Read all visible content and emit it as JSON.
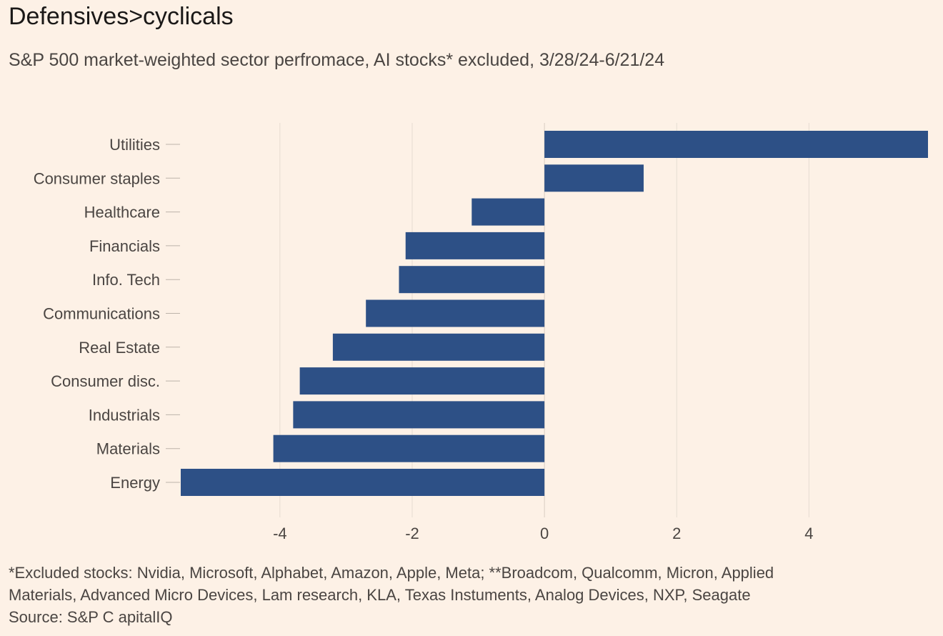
{
  "title": "Defensives>cyclicals",
  "subtitle": "S&P 500 market-weighted sector perfromace, AI stocks* excluded, 3/28/24-6/21/24",
  "footnote": {
    "line1": "*Excluded stocks: Nvidia, Microsoft, Alphabet, Amazon, Apple, Meta; **Broadcom, Qualcomm, Micron, Applied",
    "line2": "Materials, Advanced Micro Devices, Lam research, KLA, Texas Instuments, Analog Devices, NXP, Seagate",
    "source": "Source: S&P C apitalIQ"
  },
  "colors": {
    "bar": "#2d5086",
    "background": "#fdf1e6",
    "grid": "#e6dcd2",
    "tick": "#bdb3aa"
  },
  "chart_data": {
    "type": "bar",
    "orientation": "horizontal",
    "title": "Defensives>cyclicals",
    "subtitle": "S&P 500 market-weighted sector perfromace, AI stocks* excluded, 3/28/24-6/21/24",
    "xlabel": "",
    "ylabel": "",
    "categories": [
      "Utilities",
      "Consumer staples",
      "Healthcare",
      "Financials",
      "Info. Tech",
      "Communications",
      "Real Estate",
      "Consumer disc.",
      "Industrials",
      "Materials",
      "Energy"
    ],
    "values": [
      5.8,
      1.5,
      -1.1,
      -2.1,
      -2.2,
      -2.7,
      -3.2,
      -3.7,
      -3.8,
      -4.1,
      -5.5
    ],
    "xlim": [
      -5.5,
      5.8
    ],
    "xticks": [
      -4,
      -2,
      0,
      2,
      4
    ],
    "xtick_labels": [
      "-4",
      "-2",
      "0",
      "2",
      "4"
    ],
    "grid": "vertical",
    "legend": "none"
  }
}
